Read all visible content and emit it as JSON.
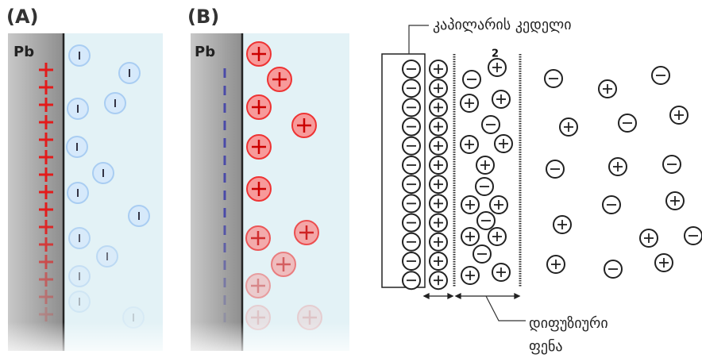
{
  "panel_a": {
    "label": "(A)",
    "electrode": "Pb"
  },
  "panel_b": {
    "label": "(B)",
    "electrode": "Pb"
  },
  "panel_c": {
    "wall_label": "კაპილარის კედელი",
    "layer_number": "2",
    "diffuse_label_line1": "დიფუზიური",
    "diffuse_label_line2": "ფენა"
  }
}
